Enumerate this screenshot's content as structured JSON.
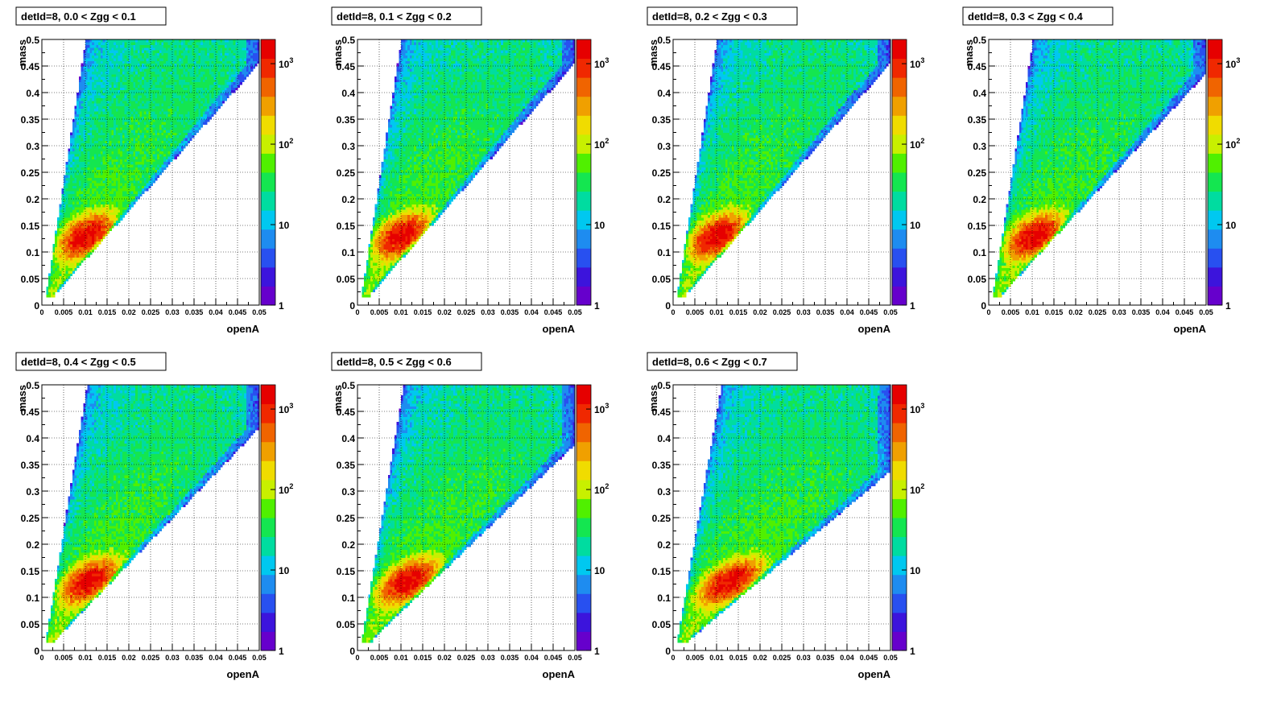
{
  "colors": {
    "palette": [
      "#6600cc",
      "#3c14dc",
      "#2850f0",
      "#1e8cf0",
      "#00c8f0",
      "#00dca0",
      "#14e650",
      "#50f000",
      "#c8f000",
      "#f0dc00",
      "#f0a000",
      "#f06400",
      "#f02800",
      "#e60000"
    ],
    "frame": "#000000",
    "grid": "#000000"
  },
  "chart_data": [
    {
      "type": "heatmap",
      "title": "detId=8, 0.0 < Zgg < 0.1",
      "xlabel": "openA",
      "ylabel": "mass",
      "xlim": [
        0,
        0.05
      ],
      "ylim": [
        0,
        0.5
      ],
      "zscale": "log",
      "zlim": [
        1,
        2000
      ],
      "grid": true,
      "peak": [
        0.0115,
        0.13
      ],
      "x_ticks": [
        "0",
        "0.005",
        "0.01",
        "0.015",
        "0.02",
        "0.025",
        "0.03",
        "0.035",
        "0.04",
        "0.045",
        "0.05"
      ],
      "y_ticks": [
        "0",
        "0.05",
        "0.1",
        "0.15",
        "0.2",
        "0.25",
        "0.3",
        "0.35",
        "0.4",
        "0.45",
        "0.5"
      ],
      "z_ticks": [
        {
          "value": 1,
          "base": "1",
          "exp": ""
        },
        {
          "value": 10,
          "base": "10",
          "exp": ""
        },
        {
          "value": 100,
          "base": "10",
          "exp": "2"
        },
        {
          "value": 1000,
          "base": "10",
          "exp": "3"
        }
      ]
    },
    {
      "type": "heatmap",
      "title": "detId=8, 0.1 < Zgg < 0.2",
      "xlabel": "openA",
      "ylabel": "mass",
      "xlim": [
        0,
        0.05
      ],
      "ylim": [
        0,
        0.5
      ],
      "zscale": "log",
      "zlim": [
        1,
        2000
      ],
      "grid": true,
      "peak": [
        0.0115,
        0.13
      ],
      "x_ticks": [
        "0",
        "0.005",
        "0.01",
        "0.015",
        "0.02",
        "0.025",
        "0.03",
        "0.035",
        "0.04",
        "0.045",
        "0.05"
      ],
      "y_ticks": [
        "0",
        "0.05",
        "0.1",
        "0.15",
        "0.2",
        "0.25",
        "0.3",
        "0.35",
        "0.4",
        "0.45",
        "0.5"
      ],
      "z_ticks": [
        {
          "value": 1,
          "base": "1",
          "exp": ""
        },
        {
          "value": 10,
          "base": "10",
          "exp": ""
        },
        {
          "value": 100,
          "base": "10",
          "exp": "2"
        },
        {
          "value": 1000,
          "base": "10",
          "exp": "3"
        }
      ]
    },
    {
      "type": "heatmap",
      "title": "detId=8, 0.2 < Zgg < 0.3",
      "xlabel": "openA",
      "ylabel": "mass",
      "xlim": [
        0,
        0.05
      ],
      "ylim": [
        0,
        0.5
      ],
      "zscale": "log",
      "zlim": [
        1,
        2000
      ],
      "grid": true,
      "peak": [
        0.0115,
        0.13
      ],
      "x_ticks": [
        "0",
        "0.005",
        "0.01",
        "0.015",
        "0.02",
        "0.025",
        "0.03",
        "0.035",
        "0.04",
        "0.045",
        "0.05"
      ],
      "y_ticks": [
        "0",
        "0.05",
        "0.1",
        "0.15",
        "0.2",
        "0.25",
        "0.3",
        "0.35",
        "0.4",
        "0.45",
        "0.5"
      ],
      "z_ticks": [
        {
          "value": 1,
          "base": "1",
          "exp": ""
        },
        {
          "value": 10,
          "base": "10",
          "exp": ""
        },
        {
          "value": 100,
          "base": "10",
          "exp": "2"
        },
        {
          "value": 1000,
          "base": "10",
          "exp": "3"
        }
      ]
    },
    {
      "type": "heatmap",
      "title": "detId=8, 0.3 < Zgg < 0.4",
      "xlabel": "openA",
      "ylabel": "mass",
      "xlim": [
        0,
        0.05
      ],
      "ylim": [
        0,
        0.5
      ],
      "zscale": "log",
      "zlim": [
        1,
        2000
      ],
      "grid": true,
      "peak": [
        0.012,
        0.13
      ],
      "x_ticks": [
        "0",
        "0.005",
        "0.01",
        "0.015",
        "0.02",
        "0.025",
        "0.03",
        "0.035",
        "0.04",
        "0.045",
        "0.05"
      ],
      "y_ticks": [
        "0",
        "0.05",
        "0.1",
        "0.15",
        "0.2",
        "0.25",
        "0.3",
        "0.35",
        "0.4",
        "0.45",
        "0.5"
      ],
      "z_ticks": [
        {
          "value": 1,
          "base": "1",
          "exp": ""
        },
        {
          "value": 10,
          "base": "10",
          "exp": ""
        },
        {
          "value": 100,
          "base": "10",
          "exp": "2"
        },
        {
          "value": 1000,
          "base": "10",
          "exp": "3"
        }
      ]
    },
    {
      "type": "heatmap",
      "title": "detId=8, 0.4 < Zgg < 0.5",
      "xlabel": "openA",
      "ylabel": "mass",
      "xlim": [
        0,
        0.05
      ],
      "ylim": [
        0,
        0.5
      ],
      "zscale": "log",
      "zlim": [
        1,
        2000
      ],
      "grid": true,
      "peak": [
        0.0125,
        0.13
      ],
      "x_ticks": [
        "0",
        "0.005",
        "0.01",
        "0.015",
        "0.02",
        "0.025",
        "0.03",
        "0.035",
        "0.04",
        "0.045",
        "0.05"
      ],
      "y_ticks": [
        "0",
        "0.05",
        "0.1",
        "0.15",
        "0.2",
        "0.25",
        "0.3",
        "0.35",
        "0.4",
        "0.45",
        "0.5"
      ],
      "z_ticks": [
        {
          "value": 1,
          "base": "1",
          "exp": ""
        },
        {
          "value": 10,
          "base": "10",
          "exp": ""
        },
        {
          "value": 100,
          "base": "10",
          "exp": "2"
        },
        {
          "value": 1000,
          "base": "10",
          "exp": "3"
        }
      ]
    },
    {
      "type": "heatmap",
      "title": "detId=8, 0.5 < Zgg < 0.6",
      "xlabel": "openA",
      "ylabel": "mass",
      "xlim": [
        0,
        0.05
      ],
      "ylim": [
        0,
        0.5
      ],
      "zscale": "log",
      "zlim": [
        1,
        2000
      ],
      "grid": true,
      "peak": [
        0.0135,
        0.13
      ],
      "x_ticks": [
        "0",
        "0.005",
        "0.01",
        "0.015",
        "0.02",
        "0.025",
        "0.03",
        "0.035",
        "0.04",
        "0.045",
        "0.05"
      ],
      "y_ticks": [
        "0",
        "0.05",
        "0.1",
        "0.15",
        "0.2",
        "0.25",
        "0.3",
        "0.35",
        "0.4",
        "0.45",
        "0.5"
      ],
      "z_ticks": [
        {
          "value": 1,
          "base": "1",
          "exp": ""
        },
        {
          "value": 10,
          "base": "10",
          "exp": ""
        },
        {
          "value": 100,
          "base": "10",
          "exp": "2"
        },
        {
          "value": 1000,
          "base": "10",
          "exp": "3"
        }
      ]
    },
    {
      "type": "heatmap",
      "title": "detId=8, 0.6 < Zgg < 0.7",
      "xlabel": "openA",
      "ylabel": "mass",
      "xlim": [
        0,
        0.05
      ],
      "ylim": [
        0,
        0.5
      ],
      "zscale": "log",
      "zlim": [
        1,
        2000
      ],
      "grid": true,
      "peak": [
        0.0155,
        0.13
      ],
      "x_ticks": [
        "0",
        "0.005",
        "0.01",
        "0.015",
        "0.02",
        "0.025",
        "0.03",
        "0.035",
        "0.04",
        "0.045",
        "0.05"
      ],
      "y_ticks": [
        "0",
        "0.05",
        "0.1",
        "0.15",
        "0.2",
        "0.25",
        "0.3",
        "0.35",
        "0.4",
        "0.45",
        "0.5"
      ],
      "z_ticks": [
        {
          "value": 1,
          "base": "1",
          "exp": ""
        },
        {
          "value": 10,
          "base": "10",
          "exp": ""
        },
        {
          "value": 100,
          "base": "10",
          "exp": "2"
        },
        {
          "value": 1000,
          "base": "10",
          "exp": "3"
        }
      ]
    }
  ]
}
